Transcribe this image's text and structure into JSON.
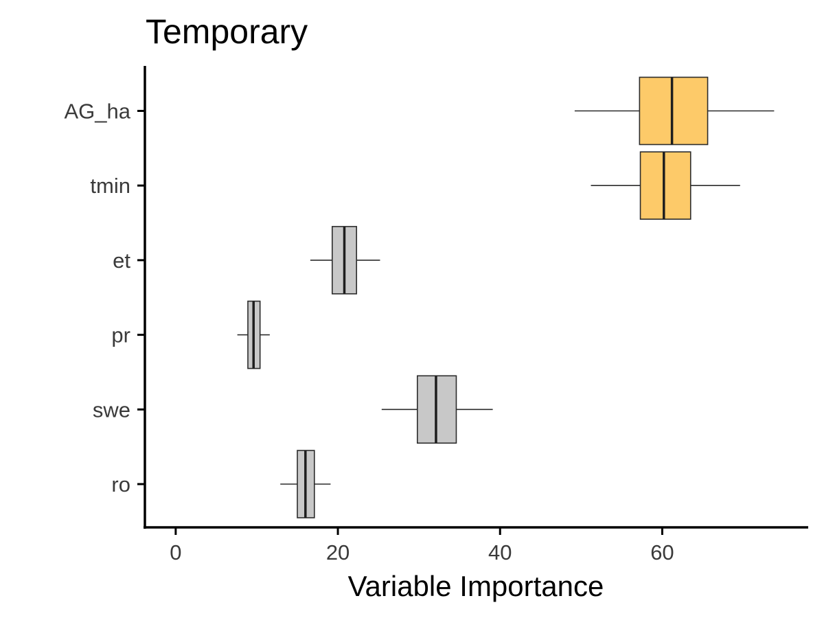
{
  "chart_data": {
    "type": "boxplot",
    "orientation": "horizontal",
    "title": "Temporary",
    "xlabel": "Variable Importance",
    "ylabel": "",
    "xlim": [
      -3.8,
      78
    ],
    "xticks": [
      0,
      20,
      40,
      60
    ],
    "grid": false,
    "legend": "none",
    "colors": {
      "highlight": "#FDCA69",
      "default": "#C8C8C8",
      "outline": "#2b2b2b"
    },
    "categories": [
      "AG_ha",
      "tmin",
      "et",
      "pr",
      "swe",
      "ro"
    ],
    "series": [
      {
        "category": "AG_ha",
        "min": 49.2,
        "q1": 57.2,
        "median": 61.2,
        "q3": 65.6,
        "max": 73.8,
        "fill": "#FDCA69"
      },
      {
        "category": "tmin",
        "min": 51.2,
        "q1": 57.3,
        "median": 60.2,
        "q3": 63.5,
        "max": 69.6,
        "fill": "#FDCA69"
      },
      {
        "category": "et",
        "min": 16.6,
        "q1": 19.3,
        "median": 20.8,
        "q3": 22.3,
        "max": 25.2,
        "fill": "#C8C8C8"
      },
      {
        "category": "pr",
        "min": 7.6,
        "q1": 8.9,
        "median": 9.6,
        "q3": 10.4,
        "max": 11.6,
        "fill": "#C8C8C8"
      },
      {
        "category": "swe",
        "min": 25.4,
        "q1": 29.8,
        "median": 32.1,
        "q3": 34.6,
        "max": 39.1,
        "fill": "#C8C8C8"
      },
      {
        "category": "ro",
        "min": 12.9,
        "q1": 15.0,
        "median": 16.0,
        "q3": 17.1,
        "max": 19.1,
        "fill": "#C8C8C8"
      }
    ]
  }
}
